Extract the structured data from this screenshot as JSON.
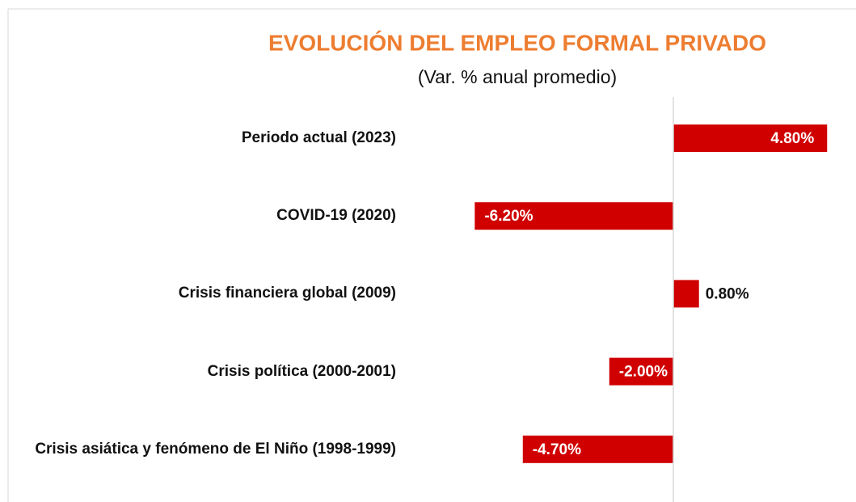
{
  "chart_data": {
    "type": "hbar",
    "title": "EVOLUCIÓN DEL EMPLEO FORMAL PRIVADO",
    "subtitle": "(Var. % anual promedio)",
    "categories": [
      "Periodo actual (2023)",
      "COVID-19 (2020)",
      "Crisis financiera global (2009)",
      "Crisis política (2000-2001)",
      "Crisis asiática y fenómeno de El Niño (1998-1999)"
    ],
    "values": [
      4.8,
      -6.2,
      0.8,
      -2.0,
      -4.7
    ],
    "value_labels": [
      "4.80%",
      "-6.20%",
      "0.80%",
      "-2.00%",
      "-4.70%"
    ],
    "color": "#d00000",
    "title_color": "#ed7d31",
    "xlim": [
      -8,
      5.5
    ]
  }
}
